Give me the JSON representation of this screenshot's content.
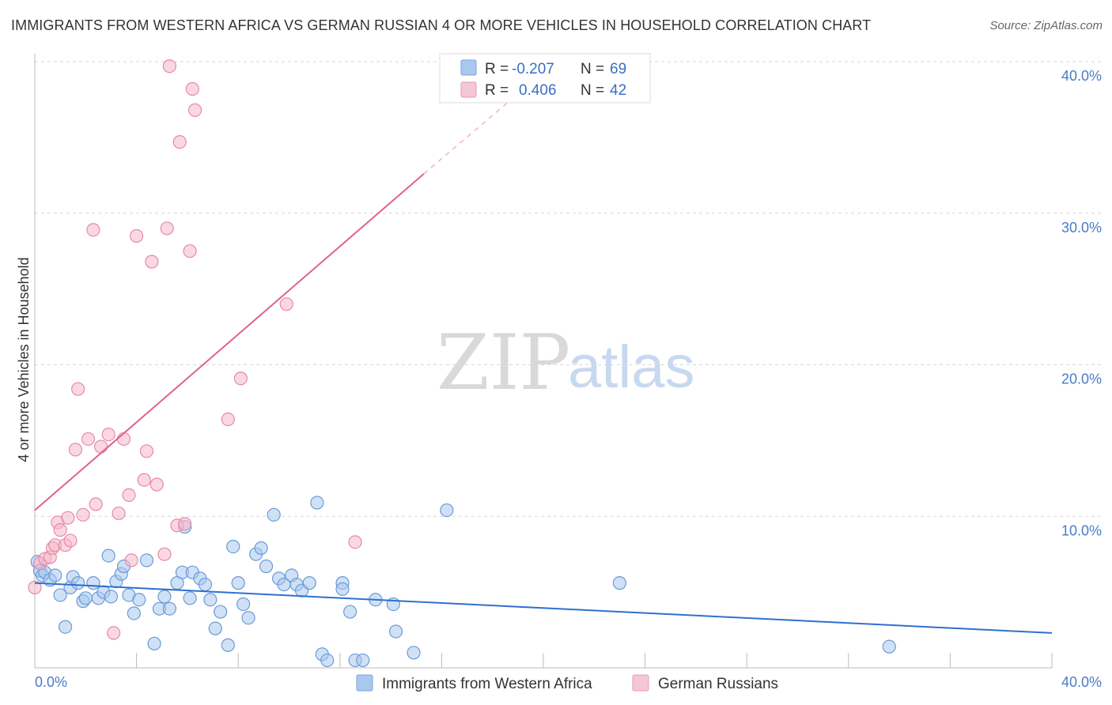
{
  "title": "IMMIGRANTS FROM WESTERN AFRICA VS GERMAN RUSSIAN 4 OR MORE VEHICLES IN HOUSEHOLD CORRELATION CHART",
  "source": "Source: ZipAtlas.com",
  "watermark": {
    "zip": "ZIP",
    "atlas": "atlas"
  },
  "legend": {
    "r_label": "R =",
    "n_label": "N =",
    "rows": [
      {
        "r": "-0.207",
        "n": "69",
        "color": "#a9c8ee"
      },
      {
        "r": "0.406",
        "n": "42",
        "color": "#f5b8cb"
      }
    ]
  },
  "colors": {
    "blue": "#6a9ad8",
    "blue_fill": "#a9c8ee",
    "blue_line": "#2f6fd0",
    "pink": "#e68aa6",
    "pink_fill": "#f5b8cb",
    "pink_line": "#e0628a",
    "tick": "#4a7cc7"
  },
  "chart_data": {
    "type": "scatter",
    "title": "IMMIGRANTS FROM WESTERN AFRICA VS GERMAN RUSSIAN 4 OR MORE VEHICLES IN HOUSEHOLD CORRELATION CHART",
    "xlabel": "",
    "ylabel": "4 or more Vehicles in Household",
    "xlim": [
      0,
      40
    ],
    "ylim": [
      0,
      40
    ],
    "x_tick_labels": [
      "0.0%",
      "40.0%"
    ],
    "y_tick_labels": [
      "10.0%",
      "20.0%",
      "30.0%",
      "40.0%"
    ],
    "y_ticks": [
      10,
      20,
      30,
      40
    ],
    "grid": true,
    "legend_position": "top-center",
    "series": [
      {
        "name": "Immigrants from Western Africa",
        "r": -0.207,
        "n": 69,
        "trend": {
          "x": [
            0,
            40
          ],
          "y": [
            5.6,
            2.3
          ]
        },
        "points": [
          [
            0.1,
            7.0
          ],
          [
            0.2,
            6.4
          ],
          [
            0.3,
            6.1
          ],
          [
            0.4,
            6.3
          ],
          [
            0.6,
            5.8
          ],
          [
            0.8,
            6.1
          ],
          [
            1.0,
            4.8
          ],
          [
            1.2,
            2.7
          ],
          [
            1.4,
            5.3
          ],
          [
            1.5,
            6.0
          ],
          [
            1.7,
            5.6
          ],
          [
            1.9,
            4.4
          ],
          [
            2.0,
            4.6
          ],
          [
            2.3,
            5.6
          ],
          [
            2.5,
            4.6
          ],
          [
            2.7,
            5.0
          ],
          [
            2.9,
            7.4
          ],
          [
            3.0,
            4.7
          ],
          [
            3.2,
            5.7
          ],
          [
            3.4,
            6.2
          ],
          [
            3.5,
            6.7
          ],
          [
            3.7,
            4.8
          ],
          [
            3.9,
            3.6
          ],
          [
            4.1,
            4.5
          ],
          [
            4.4,
            7.1
          ],
          [
            4.7,
            1.6
          ],
          [
            4.9,
            3.9
          ],
          [
            5.1,
            4.7
          ],
          [
            5.3,
            3.9
          ],
          [
            5.6,
            5.6
          ],
          [
            5.8,
            6.3
          ],
          [
            5.9,
            9.3
          ],
          [
            6.1,
            4.6
          ],
          [
            6.2,
            6.3
          ],
          [
            6.5,
            5.9
          ],
          [
            6.7,
            5.5
          ],
          [
            6.9,
            4.5
          ],
          [
            7.1,
            2.6
          ],
          [
            7.3,
            3.7
          ],
          [
            7.6,
            1.5
          ],
          [
            7.8,
            8.0
          ],
          [
            8.0,
            5.6
          ],
          [
            8.2,
            4.2
          ],
          [
            8.4,
            3.3
          ],
          [
            8.7,
            7.5
          ],
          [
            8.9,
            7.9
          ],
          [
            9.1,
            6.7
          ],
          [
            9.4,
            10.1
          ],
          [
            9.6,
            5.9
          ],
          [
            9.8,
            5.5
          ],
          [
            10.1,
            6.1
          ],
          [
            10.3,
            5.5
          ],
          [
            10.5,
            5.1
          ],
          [
            10.8,
            5.6
          ],
          [
            11.1,
            10.9
          ],
          [
            11.3,
            0.9
          ],
          [
            11.5,
            0.5
          ],
          [
            12.1,
            5.6
          ],
          [
            12.1,
            5.2
          ],
          [
            12.4,
            3.7
          ],
          [
            12.6,
            0.5
          ],
          [
            12.9,
            0.5
          ],
          [
            13.4,
            4.5
          ],
          [
            14.1,
            4.2
          ],
          [
            14.2,
            2.4
          ],
          [
            14.9,
            1.0
          ],
          [
            16.2,
            10.4
          ],
          [
            23.0,
            5.6
          ],
          [
            33.6,
            1.4
          ]
        ]
      },
      {
        "name": "German Russians",
        "r": 0.406,
        "n": 42,
        "trend": {
          "x": [
            0,
            15.3
          ],
          "y": [
            10.4,
            32.6
          ]
        },
        "trend_dashed": {
          "x": [
            15.3,
            20.0
          ],
          "y": [
            32.6,
            39.3
          ]
        },
        "points": [
          [
            0.0,
            5.3
          ],
          [
            0.2,
            6.9
          ],
          [
            0.4,
            7.2
          ],
          [
            0.6,
            7.3
          ],
          [
            0.7,
            7.9
          ],
          [
            0.8,
            8.1
          ],
          [
            0.9,
            9.6
          ],
          [
            1.0,
            9.1
          ],
          [
            1.2,
            8.1
          ],
          [
            1.3,
            9.9
          ],
          [
            1.4,
            8.4
          ],
          [
            1.6,
            14.4
          ],
          [
            1.7,
            18.4
          ],
          [
            1.9,
            10.1
          ],
          [
            2.1,
            15.1
          ],
          [
            2.3,
            28.9
          ],
          [
            2.4,
            10.8
          ],
          [
            2.6,
            14.6
          ],
          [
            2.9,
            15.4
          ],
          [
            3.1,
            2.3
          ],
          [
            3.3,
            10.2
          ],
          [
            3.5,
            15.1
          ],
          [
            3.7,
            11.4
          ],
          [
            3.8,
            7.1
          ],
          [
            4.0,
            28.5
          ],
          [
            4.3,
            12.4
          ],
          [
            4.4,
            14.3
          ],
          [
            4.6,
            26.8
          ],
          [
            4.8,
            12.1
          ],
          [
            5.1,
            7.5
          ],
          [
            5.2,
            29.0
          ],
          [
            5.3,
            39.7
          ],
          [
            5.6,
            9.4
          ],
          [
            5.7,
            34.7
          ],
          [
            5.9,
            9.5
          ],
          [
            6.1,
            27.5
          ],
          [
            6.2,
            38.2
          ],
          [
            6.3,
            36.8
          ],
          [
            7.6,
            16.4
          ],
          [
            8.1,
            19.1
          ],
          [
            9.9,
            24.0
          ],
          [
            12.6,
            8.3
          ]
        ]
      }
    ]
  }
}
